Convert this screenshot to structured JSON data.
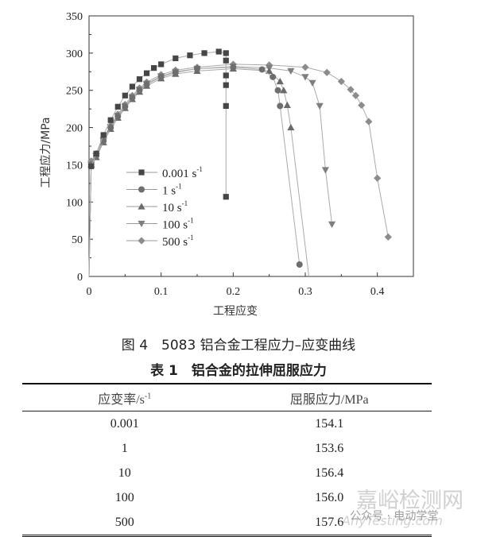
{
  "chart_data": {
    "type": "line",
    "xlabel": "工程应变",
    "ylabel": "工程应力/MPa",
    "xlim": [
      0,
      0.45
    ],
    "ylim": [
      0,
      350
    ],
    "xticks": [
      "0",
      "0.1",
      "0.2",
      "0.3",
      "0.4"
    ],
    "yticks": [
      "0",
      "50",
      "100",
      "150",
      "200",
      "250",
      "300",
      "350"
    ],
    "grid": false,
    "legend_placement": "center-left",
    "series": [
      {
        "name": "0.001 s",
        "sup": "-1",
        "marker": "square",
        "color": "#464646",
        "points": [
          [
            0,
            0
          ],
          [
            0.003,
            148
          ],
          [
            0.01,
            165
          ],
          [
            0.02,
            190
          ],
          [
            0.03,
            210
          ],
          [
            0.04,
            228
          ],
          [
            0.05,
            243
          ],
          [
            0.06,
            255
          ],
          [
            0.07,
            265
          ],
          [
            0.08,
            273
          ],
          [
            0.09,
            280
          ],
          [
            0.1,
            285
          ],
          [
            0.12,
            293
          ],
          [
            0.14,
            297
          ],
          [
            0.16,
            300
          ],
          [
            0.18,
            302
          ],
          [
            0.19,
            300
          ],
          [
            0.19,
            290
          ],
          [
            0.19,
            270
          ],
          [
            0.19,
            257
          ],
          [
            0.19,
            229
          ],
          [
            0.19,
            107
          ]
        ]
      },
      {
        "name": "1 s",
        "sup": "-1",
        "marker": "circle",
        "color": "#6e6e6e",
        "points": [
          [
            0,
            0
          ],
          [
            0.003,
            150
          ],
          [
            0.01,
            162
          ],
          [
            0.02,
            182
          ],
          [
            0.03,
            200
          ],
          [
            0.04,
            215
          ],
          [
            0.05,
            228
          ],
          [
            0.06,
            240
          ],
          [
            0.07,
            250
          ],
          [
            0.08,
            258
          ],
          [
            0.1,
            268
          ],
          [
            0.12,
            274
          ],
          [
            0.15,
            279
          ],
          [
            0.2,
            281
          ],
          [
            0.24,
            278
          ],
          [
            0.255,
            268
          ],
          [
            0.262,
            250
          ],
          [
            0.265,
            229
          ],
          [
            0.292,
            16
          ]
        ]
      },
      {
        "name": "10 s",
        "sup": "-1",
        "marker": "triangle-up",
        "color": "#6a6a6a",
        "points": [
          [
            0,
            0
          ],
          [
            0.003,
            150
          ],
          [
            0.01,
            160
          ],
          [
            0.02,
            180
          ],
          [
            0.03,
            198
          ],
          [
            0.04,
            213
          ],
          [
            0.05,
            226
          ],
          [
            0.06,
            238
          ],
          [
            0.07,
            248
          ],
          [
            0.08,
            256
          ],
          [
            0.1,
            266
          ],
          [
            0.12,
            272
          ],
          [
            0.15,
            276
          ],
          [
            0.2,
            279
          ],
          [
            0.25,
            276
          ],
          [
            0.265,
            262
          ],
          [
            0.27,
            250
          ],
          [
            0.275,
            230
          ],
          [
            0.28,
            200
          ],
          [
            0.305,
            0
          ]
        ]
      },
      {
        "name": "100 s",
        "sup": "-1",
        "marker": "triangle-down",
        "color": "#7e7e7e",
        "points": [
          [
            0,
            0
          ],
          [
            0.003,
            150
          ],
          [
            0.01,
            162
          ],
          [
            0.02,
            183
          ],
          [
            0.03,
            201
          ],
          [
            0.04,
            216
          ],
          [
            0.05,
            229
          ],
          [
            0.06,
            241
          ],
          [
            0.07,
            251
          ],
          [
            0.08,
            259
          ],
          [
            0.1,
            269
          ],
          [
            0.12,
            275
          ],
          [
            0.15,
            279
          ],
          [
            0.2,
            282
          ],
          [
            0.25,
            280
          ],
          [
            0.28,
            276
          ],
          [
            0.3,
            268
          ],
          [
            0.31,
            260
          ],
          [
            0.32,
            229
          ],
          [
            0.328,
            143
          ],
          [
            0.337,
            70
          ]
        ]
      },
      {
        "name": "500 s",
        "sup": "-1",
        "marker": "diamond",
        "color": "#8c8c8c",
        "points": [
          [
            0,
            0
          ],
          [
            0.003,
            155
          ],
          [
            0.01,
            165
          ],
          [
            0.02,
            185
          ],
          [
            0.03,
            203
          ],
          [
            0.04,
            218
          ],
          [
            0.05,
            231
          ],
          [
            0.06,
            243
          ],
          [
            0.07,
            253
          ],
          [
            0.08,
            261
          ],
          [
            0.1,
            271
          ],
          [
            0.12,
            277
          ],
          [
            0.15,
            281
          ],
          [
            0.2,
            285
          ],
          [
            0.25,
            284
          ],
          [
            0.3,
            281
          ],
          [
            0.33,
            274
          ],
          [
            0.35,
            262
          ],
          [
            0.363,
            251
          ],
          [
            0.37,
            243
          ],
          [
            0.378,
            230
          ],
          [
            0.388,
            208
          ],
          [
            0.4,
            132
          ],
          [
            0.415,
            53
          ]
        ]
      }
    ]
  },
  "figure_caption": "图 4　5083 铝合金工程应力–应变曲线",
  "table": {
    "title": "表 1　铝合金的拉伸屈服应力",
    "headers": [
      "应变率/s",
      "屈服应力/MPa"
    ],
    "header_sup": "-1",
    "rows": [
      [
        "0.001",
        "154.1"
      ],
      [
        "1",
        "153.6"
      ],
      [
        "10",
        "156.4"
      ],
      [
        "100",
        "156.0"
      ],
      [
        "500",
        "157.6"
      ]
    ]
  },
  "watermark": {
    "site": "嘉峪检测网",
    "account": "公众号 · 电动学堂",
    "url": "AnyTesting.com"
  }
}
